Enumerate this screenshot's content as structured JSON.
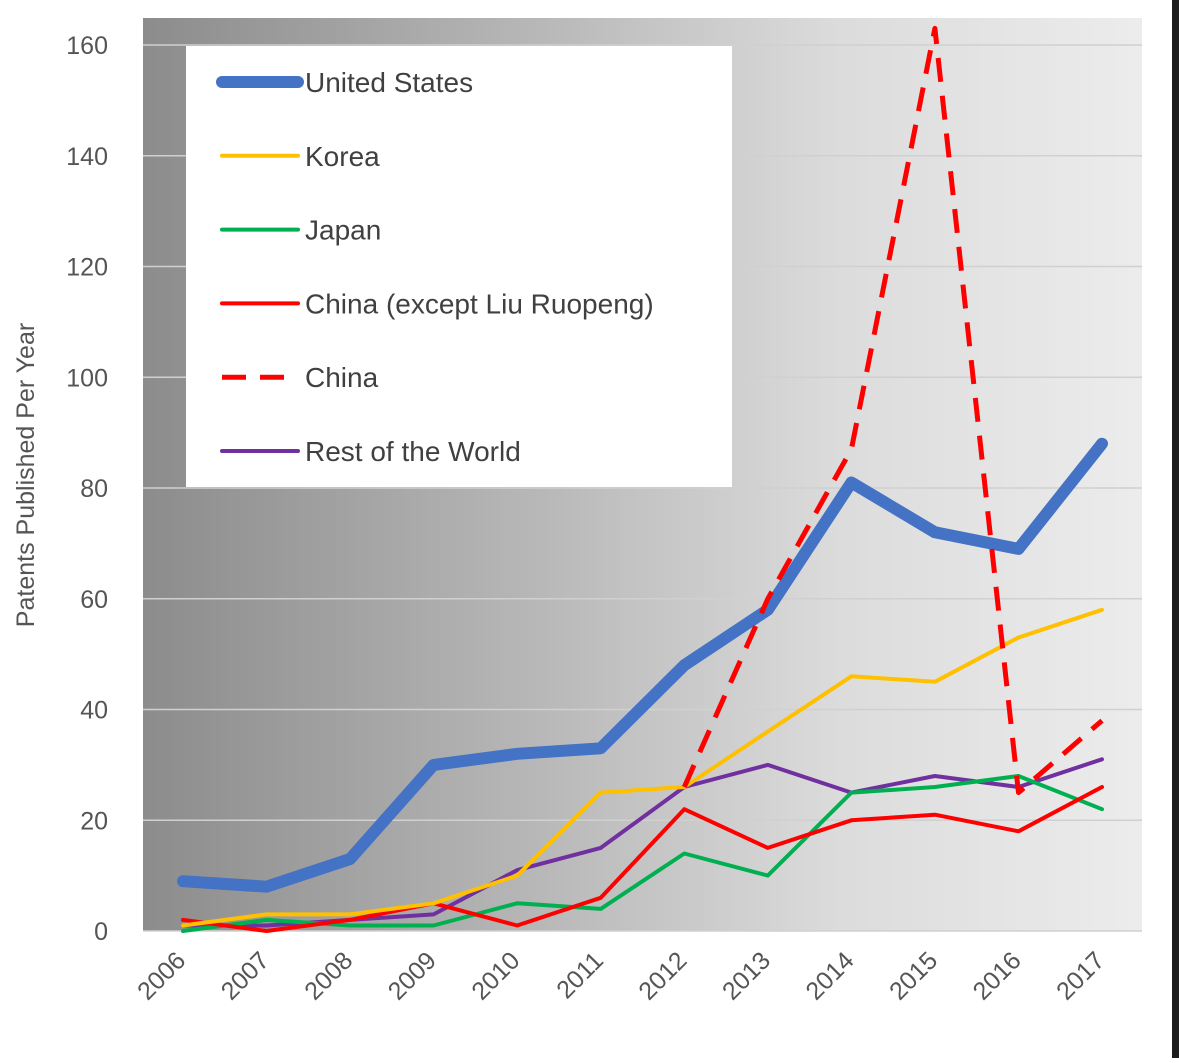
{
  "chart_data": {
    "type": "line",
    "title": "",
    "xlabel": "",
    "ylabel": "Patents Published Per Year",
    "x": [
      "2006",
      "2007",
      "2008",
      "2009",
      "2010",
      "2011",
      "2012",
      "2013",
      "2014",
      "2015",
      "2016",
      "2017"
    ],
    "ylim": [
      0,
      160
    ],
    "yticks": [
      0,
      20,
      40,
      60,
      80,
      100,
      120,
      140,
      160
    ],
    "grid": true,
    "legend_position": "top-left",
    "series": [
      {
        "name": "United States",
        "color": "#4472C4",
        "style": "solid-thick",
        "values": [
          9,
          8,
          13,
          30,
          32,
          33,
          48,
          58,
          81,
          72,
          69,
          88
        ]
      },
      {
        "name": "Korea",
        "color": "#FFC000",
        "style": "solid",
        "values": [
          1,
          3,
          3,
          5,
          10,
          25,
          26,
          36,
          46,
          45,
          53,
          58
        ]
      },
      {
        "name": "Japan",
        "color": "#00B050",
        "style": "solid",
        "values": [
          0,
          2,
          1,
          1,
          5,
          4,
          14,
          10,
          25,
          26,
          28,
          22
        ]
      },
      {
        "name": "China (except Liu Ruopeng)",
        "color": "#FF0000",
        "style": "solid",
        "values": [
          2,
          0,
          2,
          5,
          1,
          6,
          22,
          15,
          20,
          21,
          18,
          26
        ]
      },
      {
        "name": "China",
        "color": "#FF0000",
        "style": "dashed",
        "values": [
          null,
          null,
          null,
          null,
          null,
          null,
          26,
          60,
          87,
          163,
          25,
          38
        ]
      },
      {
        "name": "Rest of the World",
        "color": "#7030A0",
        "style": "solid",
        "values": [
          1,
          1,
          2,
          3,
          11,
          15,
          26,
          30,
          25,
          28,
          26,
          31
        ]
      }
    ]
  }
}
